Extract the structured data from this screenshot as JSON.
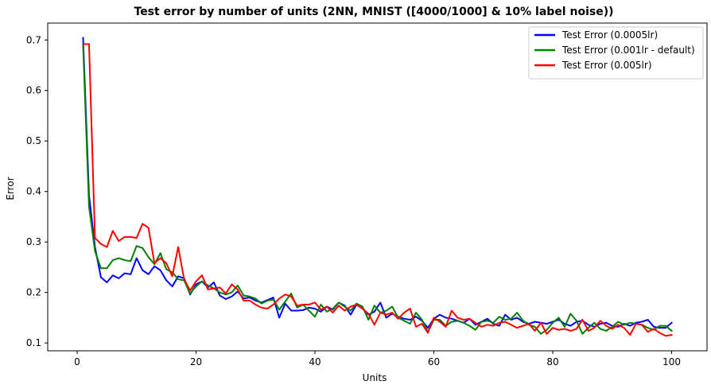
{
  "chart_data": {
    "type": "line",
    "title": "Test error by number of units (2NN, MNIST ([4000/1000] & 10% label noise))",
    "xlabel": "Units",
    "ylabel": "Error",
    "xlim": [
      -4.95,
      105.95
    ],
    "ylim": [
      0.0845,
      0.7335
    ],
    "xticks": [
      0,
      20,
      40,
      60,
      80,
      100
    ],
    "yticks": [
      0.1,
      0.2,
      0.3,
      0.4,
      0.5,
      0.6,
      0.7
    ],
    "grid": false,
    "legend_position": "top-right",
    "x": [
      1,
      2,
      3,
      4,
      5,
      6,
      7,
      8,
      9,
      10,
      11,
      12,
      13,
      14,
      15,
      16,
      17,
      18,
      19,
      20,
      21,
      22,
      23,
      24,
      25,
      26,
      27,
      28,
      29,
      30,
      31,
      32,
      33,
      34,
      35,
      36,
      37,
      38,
      39,
      40,
      41,
      42,
      43,
      44,
      45,
      46,
      47,
      48,
      49,
      50,
      51,
      52,
      53,
      54,
      55,
      56,
      57,
      58,
      59,
      60,
      61,
      62,
      63,
      64,
      65,
      66,
      67,
      68,
      69,
      70,
      71,
      72,
      73,
      74,
      75,
      76,
      77,
      78,
      79,
      80,
      81,
      82,
      83,
      84,
      85,
      86,
      87,
      88,
      89,
      90,
      91,
      92,
      93,
      94,
      95,
      96,
      97,
      98,
      99,
      100
    ],
    "series": [
      {
        "name": "Test Error (0.0005lr)",
        "color": "#0000ff",
        "values": [
          0.704,
          0.392,
          0.29,
          0.23,
          0.22,
          0.234,
          0.228,
          0.238,
          0.236,
          0.268,
          0.244,
          0.236,
          0.252,
          0.244,
          0.224,
          0.212,
          0.232,
          0.228,
          0.196,
          0.216,
          0.222,
          0.21,
          0.22,
          0.194,
          0.187,
          0.192,
          0.202,
          0.188,
          0.19,
          0.184,
          0.18,
          0.185,
          0.19,
          0.15,
          0.178,
          0.164,
          0.164,
          0.165,
          0.17,
          0.168,
          0.162,
          0.172,
          0.166,
          0.18,
          0.174,
          0.156,
          0.176,
          0.168,
          0.156,
          0.162,
          0.18,
          0.15,
          0.158,
          0.152,
          0.148,
          0.146,
          0.152,
          0.144,
          0.13,
          0.148,
          0.156,
          0.15,
          0.148,
          0.144,
          0.14,
          0.148,
          0.136,
          0.142,
          0.148,
          0.138,
          0.134,
          0.156,
          0.146,
          0.15,
          0.142,
          0.138,
          0.142,
          0.14,
          0.138,
          0.142,
          0.146,
          0.138,
          0.134,
          0.142,
          0.144,
          0.136,
          0.132,
          0.138,
          0.14,
          0.134,
          0.132,
          0.138,
          0.134,
          0.14,
          0.142,
          0.146,
          0.132,
          0.13,
          0.13,
          0.14
        ]
      },
      {
        "name": "Test Error (0.001lr - default)",
        "color": "#008000",
        "values": [
          0.69,
          0.37,
          0.282,
          0.248,
          0.248,
          0.264,
          0.268,
          0.264,
          0.262,
          0.292,
          0.288,
          0.27,
          0.256,
          0.278,
          0.246,
          0.24,
          0.226,
          0.224,
          0.198,
          0.212,
          0.222,
          0.214,
          0.208,
          0.2,
          0.196,
          0.2,
          0.214,
          0.194,
          0.192,
          0.188,
          0.178,
          0.184,
          0.186,
          0.166,
          0.182,
          0.198,
          0.17,
          0.176,
          0.164,
          0.152,
          0.176,
          0.162,
          0.168,
          0.18,
          0.172,
          0.164,
          0.178,
          0.172,
          0.146,
          0.174,
          0.16,
          0.164,
          0.172,
          0.15,
          0.144,
          0.138,
          0.16,
          0.146,
          0.122,
          0.146,
          0.146,
          0.134,
          0.142,
          0.144,
          0.14,
          0.134,
          0.126,
          0.142,
          0.144,
          0.14,
          0.152,
          0.146,
          0.148,
          0.16,
          0.144,
          0.136,
          0.132,
          0.118,
          0.126,
          0.14,
          0.15,
          0.132,
          0.158,
          0.144,
          0.118,
          0.13,
          0.14,
          0.128,
          0.124,
          0.132,
          0.142,
          0.136,
          0.14,
          0.138,
          0.136,
          0.13,
          0.126,
          0.134,
          0.134,
          0.124
        ]
      },
      {
        "name": "Test Error (0.005lr)",
        "color": "#ff0000",
        "values": [
          0.692,
          0.692,
          0.308,
          0.296,
          0.29,
          0.322,
          0.302,
          0.31,
          0.31,
          0.308,
          0.336,
          0.328,
          0.258,
          0.268,
          0.258,
          0.232,
          0.29,
          0.226,
          0.204,
          0.222,
          0.234,
          0.206,
          0.208,
          0.21,
          0.198,
          0.216,
          0.206,
          0.184,
          0.184,
          0.176,
          0.17,
          0.168,
          0.176,
          0.188,
          0.196,
          0.192,
          0.174,
          0.176,
          0.176,
          0.18,
          0.166,
          0.172,
          0.16,
          0.174,
          0.164,
          0.172,
          0.176,
          0.168,
          0.158,
          0.136,
          0.16,
          0.156,
          0.16,
          0.148,
          0.16,
          0.168,
          0.132,
          0.138,
          0.12,
          0.15,
          0.142,
          0.132,
          0.164,
          0.15,
          0.146,
          0.148,
          0.14,
          0.132,
          0.136,
          0.134,
          0.14,
          0.142,
          0.136,
          0.13,
          0.134,
          0.138,
          0.124,
          0.14,
          0.118,
          0.13,
          0.126,
          0.128,
          0.124,
          0.128,
          0.146,
          0.124,
          0.13,
          0.144,
          0.134,
          0.128,
          0.136,
          0.13,
          0.116,
          0.138,
          0.136,
          0.122,
          0.128,
          0.12,
          0.114,
          0.116
        ]
      }
    ]
  }
}
